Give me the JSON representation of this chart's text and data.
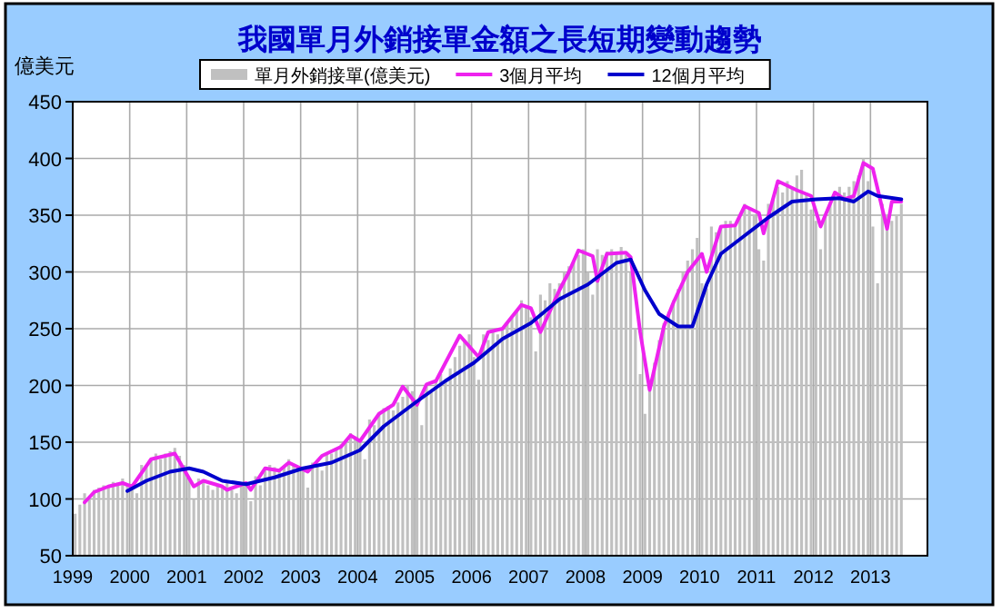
{
  "chart_data": {
    "type": "bar",
    "title": "我國單月外銷接單金額之長短期變動趨勢",
    "ylabel": "億美元",
    "x": [
      "1999-01",
      "1999-02",
      "1999-03",
      "1999-04",
      "1999-05",
      "1999-06",
      "1999-07",
      "1999-08",
      "1999-09",
      "1999-10",
      "1999-11",
      "1999-12",
      "2000-01",
      "2000-02",
      "2000-03",
      "2000-04",
      "2000-05",
      "2000-06",
      "2000-07",
      "2000-08",
      "2000-09",
      "2000-10",
      "2000-11",
      "2000-12",
      "2001-01",
      "2001-02",
      "2001-03",
      "2001-04",
      "2001-05",
      "2001-06",
      "2001-07",
      "2001-08",
      "2001-09",
      "2001-10",
      "2001-11",
      "2001-12",
      "2002-01",
      "2002-02",
      "2002-03",
      "2002-04",
      "2002-05",
      "2002-06",
      "2002-07",
      "2002-08",
      "2002-09",
      "2002-10",
      "2002-11",
      "2002-12",
      "2003-01",
      "2003-02",
      "2003-03",
      "2003-04",
      "2003-05",
      "2003-06",
      "2003-07",
      "2003-08",
      "2003-09",
      "2003-10",
      "2003-11",
      "2003-12",
      "2004-01",
      "2004-02",
      "2004-03",
      "2004-04",
      "2004-05",
      "2004-06",
      "2004-07",
      "2004-08",
      "2004-09",
      "2004-10",
      "2004-11",
      "2004-12",
      "2005-01",
      "2005-02",
      "2005-03",
      "2005-04",
      "2005-05",
      "2005-06",
      "2005-07",
      "2005-08",
      "2005-09",
      "2005-10",
      "2005-11",
      "2005-12",
      "2006-01",
      "2006-02",
      "2006-03",
      "2006-04",
      "2006-05",
      "2006-06",
      "2006-07",
      "2006-08",
      "2006-09",
      "2006-10",
      "2006-11",
      "2006-12",
      "2007-01",
      "2007-02",
      "2007-03",
      "2007-04",
      "2007-05",
      "2007-06",
      "2007-07",
      "2007-08",
      "2007-09",
      "2007-10",
      "2007-11",
      "2007-12",
      "2008-01",
      "2008-02",
      "2008-03",
      "2008-04",
      "2008-05",
      "2008-06",
      "2008-07",
      "2008-08",
      "2008-09",
      "2008-10",
      "2008-11",
      "2008-12",
      "2009-01",
      "2009-02",
      "2009-03",
      "2009-04",
      "2009-05",
      "2009-06",
      "2009-07",
      "2009-08",
      "2009-09",
      "2009-10",
      "2009-11",
      "2009-12",
      "2010-01",
      "2010-02",
      "2010-03",
      "2010-04",
      "2010-05",
      "2010-06",
      "2010-07",
      "2010-08",
      "2010-09",
      "2010-10",
      "2010-11",
      "2010-12",
      "2011-01",
      "2011-02",
      "2011-03",
      "2011-04",
      "2011-05",
      "2011-06",
      "2011-07",
      "2011-08",
      "2011-09",
      "2011-10",
      "2011-11",
      "2011-12",
      "2012-01",
      "2012-02",
      "2012-03",
      "2012-04",
      "2012-05",
      "2012-06",
      "2012-07",
      "2012-08",
      "2012-09",
      "2012-10",
      "2012-11",
      "2012-12",
      "2013-01",
      "2013-02",
      "2013-03",
      "2013-04",
      "2013-05",
      "2013-06",
      "2013-07"
    ],
    "series": [
      {
        "name": "單月外銷接單(億美元)",
        "color": "#c0c0c0",
        "values": [
          87,
          95,
          105,
          100,
          108,
          110,
          112,
          110,
          115,
          112,
          118,
          112,
          108,
          105,
          130,
          128,
          135,
          140,
          135,
          140,
          142,
          145,
          138,
          130,
          118,
          100,
          118,
          115,
          112,
          108,
          112,
          110,
          115,
          108,
          105,
          112,
          115,
          98,
          120,
          112,
          125,
          130,
          128,
          125,
          128,
          135,
          130,
          128,
          125,
          110,
          132,
          130,
          125,
          140,
          140,
          145,
          148,
          150,
          158,
          155,
          150,
          135,
          170,
          165,
          175,
          180,
          182,
          178,
          185,
          190,
          200,
          195,
          185,
          165,
          200,
          195,
          205,
          210,
          205,
          215,
          225,
          235,
          240,
          245,
          225,
          205,
          245,
          240,
          250,
          245,
          250,
          255,
          260,
          265,
          275,
          270,
          260,
          230,
          280,
          275,
          290,
          285,
          290,
          300,
          305,
          310,
          315,
          320,
          300,
          280,
          320,
          315,
          318,
          320,
          318,
          322,
          315,
          300,
          250,
          210,
          175,
          195,
          220,
          240,
          255,
          265,
          275,
          285,
          300,
          310,
          320,
          330,
          290,
          285,
          340,
          335,
          340,
          345,
          345,
          340,
          350,
          360,
          355,
          350,
          320,
          310,
          360,
          365,
          375,
          370,
          380,
          375,
          385,
          390,
          370,
          355,
          345,
          320,
          350,
          360,
          365,
          375,
          370,
          375,
          380,
          385,
          400,
          380,
          340,
          290,
          360,
          350,
          345,
          350,
          360
        ]
      },
      {
        "name": "3個月平均",
        "type": "line",
        "color": "#ee22ee",
        "x": [
          "1999-03",
          "1999-05",
          "1999-08",
          "1999-11",
          "2000-01",
          "2000-05",
          "2000-10",
          "2001-02",
          "2001-04",
          "2001-08",
          "2001-09",
          "2002-01",
          "2002-02",
          "2002-05",
          "2002-08",
          "2002-10",
          "2003-02",
          "2003-05",
          "2003-09",
          "2003-11",
          "2004-01",
          "2004-05",
          "2004-08",
          "2004-10",
          "2005-01",
          "2005-03",
          "2005-05",
          "2005-10",
          "2006-02",
          "2006-04",
          "2006-07",
          "2006-11",
          "2007-01",
          "2007-03",
          "2007-07",
          "2007-09",
          "2007-11",
          "2008-02",
          "2008-03",
          "2008-05",
          "2008-09",
          "2008-10",
          "2008-12",
          "2009-02",
          "2009-05",
          "2009-07",
          "2009-10",
          "2010-01",
          "2010-02",
          "2010-05",
          "2010-08",
          "2010-10",
          "2011-01",
          "2011-02",
          "2011-05",
          "2011-09",
          "2011-12",
          "2012-02",
          "2012-05",
          "2012-07",
          "2012-09",
          "2012-11",
          "2013-01",
          "2013-04",
          "2013-05",
          "2013-07"
        ],
        "values": [
          97,
          106,
          111,
          114,
          111,
          135,
          140,
          111,
          116,
          111,
          108,
          114,
          108,
          127,
          125,
          132,
          124,
          138,
          146,
          156,
          151,
          175,
          183,
          199,
          183,
          201,
          204,
          244,
          225,
          247,
          250,
          271,
          268,
          247,
          284,
          300,
          319,
          314,
          292,
          316,
          317,
          313,
          247,
          196,
          252,
          273,
          300,
          316,
          300,
          340,
          341,
          358,
          352,
          334,
          380,
          372,
          367,
          340,
          370,
          364,
          367,
          396,
          391,
          338,
          362,
          362
        ]
      },
      {
        "name": "12個月平均",
        "type": "line",
        "color": "#0000cc",
        "x": [
          "1999-12",
          "2000-04",
          "2000-09",
          "2001-01",
          "2001-04",
          "2001-08",
          "2002-01",
          "2002-07",
          "2003-01",
          "2003-07",
          "2004-01",
          "2004-06",
          "2005-01",
          "2005-07",
          "2006-01",
          "2006-07",
          "2007-01",
          "2007-07",
          "2008-01",
          "2008-07",
          "2008-10",
          "2009-01",
          "2009-04",
          "2009-08",
          "2009-11",
          "2010-02",
          "2010-05",
          "2010-10",
          "2011-03",
          "2011-08",
          "2012-01",
          "2012-06",
          "2012-09",
          "2012-12",
          "2013-02",
          "2013-07"
        ],
        "values": [
          107,
          116,
          124,
          127,
          124,
          116,
          113,
          119,
          127,
          132,
          143,
          164,
          186,
          204,
          220,
          241,
          255,
          276,
          289,
          308,
          311,
          284,
          263,
          252,
          252,
          289,
          316,
          332,
          348,
          362,
          364,
          365,
          362,
          371,
          367,
          364
        ]
      }
    ],
    "xlim": [
      "1999-01",
      "2014-01"
    ],
    "xticks": [
      {
        "value": "1999-01",
        "label": "1999"
      },
      {
        "value": "2000-01",
        "label": "2000"
      },
      {
        "value": "2001-01",
        "label": "2001"
      },
      {
        "value": "2002-01",
        "label": "2002"
      },
      {
        "value": "2003-01",
        "label": "2003"
      },
      {
        "value": "2004-01",
        "label": "2004"
      },
      {
        "value": "2005-01",
        "label": "2005"
      },
      {
        "value": "2006-01",
        "label": "2006"
      },
      {
        "value": "2007-01",
        "label": "2007"
      },
      {
        "value": "2008-01",
        "label": "2008"
      },
      {
        "value": "2009-01",
        "label": "2009"
      },
      {
        "value": "2010-01",
        "label": "2010"
      },
      {
        "value": "2011-01",
        "label": "2011"
      },
      {
        "value": "2012-01",
        "label": "2012"
      },
      {
        "value": "2013-01",
        "label": "2013"
      }
    ],
    "ylim": [
      50,
      450
    ],
    "yticks": [
      50,
      100,
      150,
      200,
      250,
      300,
      350,
      400,
      450
    ],
    "grid": true,
    "legend": "top",
    "marker": "none",
    "line_style": "solid"
  }
}
